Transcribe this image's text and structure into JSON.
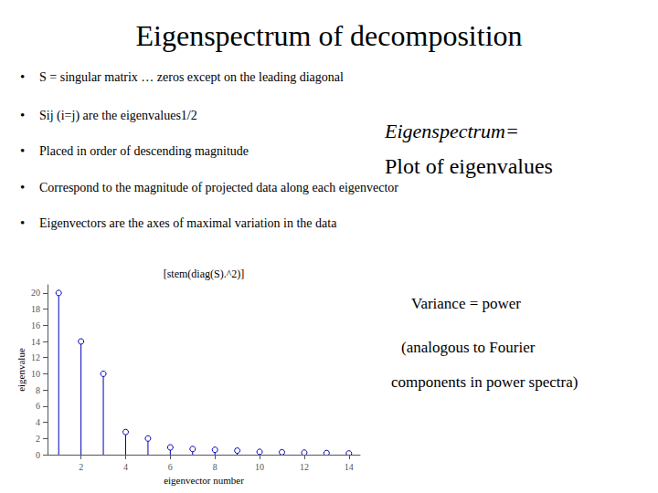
{
  "chart_data": {
    "type": "stem",
    "title": "Eigenspectrum of decomposition",
    "subtitle": "[stem(diag(S).^2)]",
    "xlabel": "eigenvector number",
    "ylabel": "eigenvalue",
    "x": [
      1,
      2,
      3,
      4,
      5,
      6,
      7,
      8,
      9,
      10,
      11,
      12,
      13,
      14
    ],
    "values": [
      20,
      14,
      10,
      2.8,
      2.0,
      0.9,
      0.7,
      0.6,
      0.5,
      0.35,
      0.3,
      0.25,
      0.2,
      0.15
    ],
    "color": "#0000bb",
    "marker": "circle",
    "xlim": [
      0.5,
      14.5
    ],
    "xticks": [
      2,
      4,
      6,
      8,
      10,
      12,
      14
    ],
    "ylim": [
      0,
      21
    ],
    "yticks": [
      0,
      2,
      4,
      6,
      8,
      10,
      12,
      14,
      16,
      18,
      20
    ],
    "grid": false,
    "annotations": {
      "bullet": "•",
      "bullets": [
        "S = singular matrix … zeros except on the leading diagonal",
        "Sij (i=j) are the eigenvalues1/2",
        "Placed in order of descending magnitude",
        "Correspond to the magnitude of projected data along each eigenvector",
        "Eigenvectors are the axes of maximal variation in the data"
      ],
      "notes": [
        "Eigenspectrum=",
        "Plot of eigenvalues",
        "Variance = power",
        "(analogous to Fourier",
        "components in power spectra)"
      ]
    }
  }
}
